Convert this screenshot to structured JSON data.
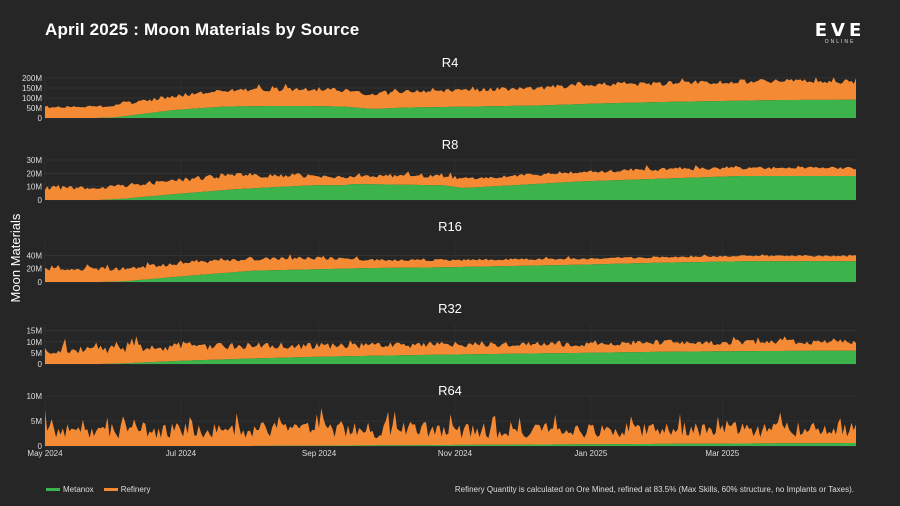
{
  "header": {
    "title": "April 2025 : Moon Materials by Source",
    "logo_text": "EVE",
    "logo_sub": "ONLINE"
  },
  "legend": {
    "metanox_label": "Metanox",
    "refinery_label": "Refinery",
    "metanox_color": "#3cb44b",
    "refinery_color": "#f58a35"
  },
  "footnote": "Refinery Quantity is calculated on Ore Mined, refined at 83.5% (Max Skills, 60% structure, no Implants or Taxes).",
  "chart_data": {
    "type": "area",
    "stacked": true,
    "ylabel": "Moon Materials",
    "x_start": "2024-05-01",
    "x_end": "2025-04-30",
    "x_ticks": [
      {
        "date": "2024-05-01",
        "label": "May 2024"
      },
      {
        "date": "2024-07-01",
        "label": "Jul 2024"
      },
      {
        "date": "2024-09-01",
        "label": "Sep 2024"
      },
      {
        "date": "2024-11-01",
        "label": "Nov 2024"
      },
      {
        "date": "2025-01-01",
        "label": "Jan 2025"
      },
      {
        "date": "2025-03-01",
        "label": "Mar 2025"
      }
    ],
    "legend_position": "bottom-left",
    "panels": [
      {
        "name": "R4",
        "ylim": [
          0,
          200
        ],
        "yticks": [
          0,
          50,
          100,
          150,
          200
        ],
        "ytick_labels": [
          "0",
          "50M",
          "100M",
          "150M",
          "200M"
        ],
        "metanox_anchors": [
          [
            0,
            0
          ],
          [
            50,
            0
          ],
          [
            70,
            3
          ],
          [
            130,
            40
          ],
          [
            180,
            57
          ],
          [
            230,
            60
          ],
          [
            260,
            60
          ],
          [
            300,
            57
          ],
          [
            330,
            45
          ],
          [
            360,
            52
          ],
          [
            400,
            55
          ],
          [
            440,
            58
          ],
          [
            500,
            63
          ],
          [
            560,
            73
          ],
          [
            620,
            80
          ],
          [
            680,
            85
          ],
          [
            740,
            90
          ],
          [
            815,
            91
          ]
        ],
        "refinery_anchors": [
          [
            0,
            55
          ],
          [
            50,
            55
          ],
          [
            70,
            62
          ],
          [
            130,
            67
          ],
          [
            180,
            81
          ],
          [
            230,
            83
          ],
          [
            260,
            84
          ],
          [
            300,
            82
          ],
          [
            330,
            72
          ],
          [
            360,
            80
          ],
          [
            400,
            82
          ],
          [
            440,
            84
          ],
          [
            500,
            88
          ],
          [
            560,
            96
          ],
          [
            620,
            93
          ],
          [
            680,
            96
          ],
          [
            740,
            95
          ],
          [
            815,
            90
          ]
        ],
        "noise": 0.13,
        "seed": 11
      },
      {
        "name": "R8",
        "ylim": [
          0,
          30
        ],
        "yticks": [
          0,
          10,
          20,
          30
        ],
        "ytick_labels": [
          "0",
          "10M",
          "20M",
          "30M"
        ],
        "metanox_anchors": [
          [
            0,
            0
          ],
          [
            55,
            0
          ],
          [
            80,
            1
          ],
          [
            140,
            5
          ],
          [
            190,
            8
          ],
          [
            240,
            10
          ],
          [
            270,
            11
          ],
          [
            300,
            11
          ],
          [
            310,
            12
          ],
          [
            400,
            11
          ],
          [
            420,
            9
          ],
          [
            470,
            11
          ],
          [
            540,
            14
          ],
          [
            620,
            16
          ],
          [
            700,
            18
          ],
          [
            815,
            18
          ]
        ],
        "refinery_anchors": [
          [
            0,
            9
          ],
          [
            55,
            9
          ],
          [
            80,
            10
          ],
          [
            140,
            10
          ],
          [
            190,
            11
          ],
          [
            240,
            8
          ],
          [
            270,
            7
          ],
          [
            300,
            6
          ],
          [
            310,
            6
          ],
          [
            400,
            7
          ],
          [
            420,
            7
          ],
          [
            470,
            7
          ],
          [
            540,
            7
          ],
          [
            620,
            7
          ],
          [
            700,
            6
          ],
          [
            815,
            6
          ]
        ],
        "noise": 0.18,
        "seed": 23
      },
      {
        "name": "R16",
        "ylim": [
          0,
          60
        ],
        "yticks": [
          0,
          20,
          40
        ],
        "ytick_labels": [
          "0",
          "20M",
          "40M"
        ],
        "metanox_anchors": [
          [
            0,
            0
          ],
          [
            55,
            0
          ],
          [
            80,
            1
          ],
          [
            150,
            10
          ],
          [
            210,
            17
          ],
          [
            270,
            19
          ],
          [
            330,
            21
          ],
          [
            400,
            22
          ],
          [
            470,
            24
          ],
          [
            540,
            26
          ],
          [
            620,
            29
          ],
          [
            700,
            31
          ],
          [
            815,
            31
          ]
        ],
        "refinery_anchors": [
          [
            0,
            20
          ],
          [
            55,
            20
          ],
          [
            80,
            19
          ],
          [
            150,
            20
          ],
          [
            210,
            17
          ],
          [
            270,
            17
          ],
          [
            330,
            12
          ],
          [
            400,
            11
          ],
          [
            470,
            10
          ],
          [
            540,
            9
          ],
          [
            620,
            8
          ],
          [
            700,
            8
          ],
          [
            815,
            8
          ]
        ],
        "noise": 0.15,
        "seed": 37
      },
      {
        "name": "R32",
        "ylim": [
          0,
          18
        ],
        "yticks": [
          0,
          5,
          10,
          15
        ],
        "ytick_labels": [
          "0",
          "5M",
          "10M",
          "15M"
        ],
        "metanox_anchors": [
          [
            0,
            0
          ],
          [
            55,
            0
          ],
          [
            80,
            0.3
          ],
          [
            140,
            1.5
          ],
          [
            210,
            2.5
          ],
          [
            270,
            3.2
          ],
          [
            330,
            3.7
          ],
          [
            400,
            4.2
          ],
          [
            470,
            4.6
          ],
          [
            540,
            5
          ],
          [
            620,
            5.5
          ],
          [
            700,
            5.8
          ],
          [
            815,
            6
          ]
        ],
        "refinery_anchors": [
          [
            0,
            6.5
          ],
          [
            55,
            6.5
          ],
          [
            80,
            6.6
          ],
          [
            140,
            6.5
          ],
          [
            210,
            5.5
          ],
          [
            270,
            5
          ],
          [
            330,
            4.6
          ],
          [
            400,
            4.6
          ],
          [
            470,
            4.2
          ],
          [
            540,
            4
          ],
          [
            620,
            4.2
          ],
          [
            700,
            4
          ],
          [
            815,
            4
          ]
        ],
        "noise": 0.3,
        "seed": 53
      },
      {
        "name": "R64",
        "ylim": [
          0,
          10
        ],
        "yticks": [
          0,
          5,
          10
        ],
        "ytick_labels": [
          "0",
          "5M",
          "10M"
        ],
        "metanox_anchors": [
          [
            0,
            0
          ],
          [
            200,
            0
          ],
          [
            300,
            0.1
          ],
          [
            400,
            0.2
          ],
          [
            500,
            0.3
          ],
          [
            600,
            0.4
          ],
          [
            700,
            0.5
          ],
          [
            815,
            0.6
          ]
        ],
        "refinery_anchors": [
          [
            0,
            3.2
          ],
          [
            100,
            3.3
          ],
          [
            200,
            3.2
          ],
          [
            300,
            3.2
          ],
          [
            400,
            3
          ],
          [
            500,
            2.8
          ],
          [
            600,
            2.9
          ],
          [
            700,
            2.8
          ],
          [
            815,
            2.8
          ]
        ],
        "noise": 0.55,
        "seed": 71
      }
    ]
  }
}
